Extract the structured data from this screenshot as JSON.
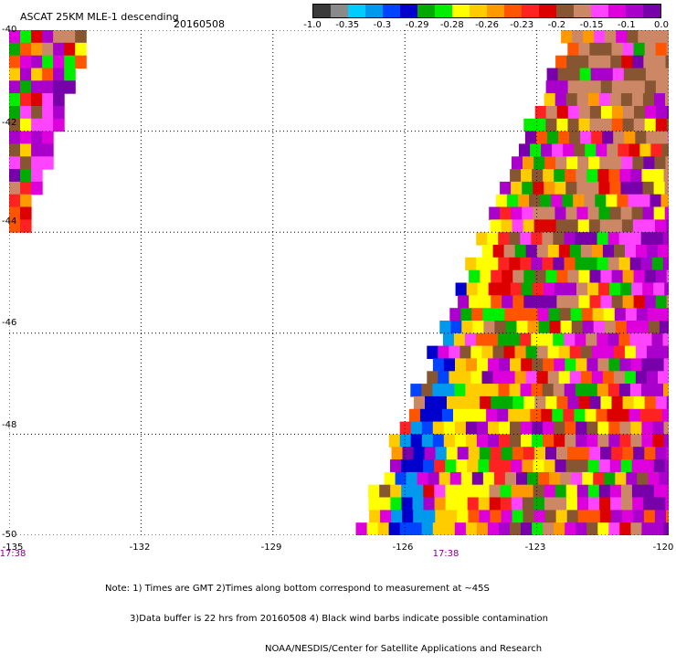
{
  "header": {
    "title": "ASCAT 25KM MLE-1 descending",
    "date": "20160508"
  },
  "colorbar": {
    "colors": [
      "#3a3a3a",
      "#8a8a8a",
      "#00ccff",
      "#0099ee",
      "#0044ff",
      "#0000cc",
      "#00aa00",
      "#00ee00",
      "#ffff00",
      "#ffcc00",
      "#ff9900",
      "#ff5500",
      "#ff2222",
      "#dd0000",
      "#885533",
      "#cc8866",
      "#ff44ff",
      "#dd00dd",
      "#aa00cc",
      "#7700aa"
    ],
    "labels": [
      "-1.0",
      "-0.35",
      "-0.3",
      "-0.29",
      "-0.28",
      "-0.26",
      "-0.23",
      "-0.2",
      "-0.15",
      "-0.1",
      "0.0"
    ]
  },
  "axes": {
    "y_labels": [
      "-40",
      "-42",
      "-44",
      "-46",
      "-48",
      "-50"
    ],
    "x_labels": [
      "-135",
      "-132",
      "-129",
      "-126",
      "-123",
      "-120"
    ],
    "time_labels": [
      "17:38",
      "17:38"
    ],
    "gridline_style": "dotted"
  },
  "map_data": {
    "lat_range": [
      -50,
      -40
    ],
    "lon_range": [
      -135,
      -120
    ],
    "projection": "lat-lon",
    "cell_deg": 0.25,
    "fields": "MLE-1 values by colour class"
  },
  "notes": {
    "line1": "Note: 1) Times are GMT 2)Times along bottom correspond to measurement at ~45S",
    "line2": "3)Data buffer is 22 hrs from 20160508 4) Black wind barbs indicate possible contamination",
    "line3": "NOAA/NESDIS/Center for Satellite Applications and Research"
  }
}
